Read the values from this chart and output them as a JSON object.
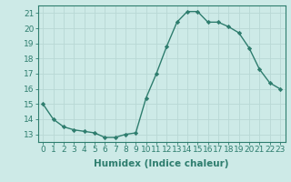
{
  "x": [
    0,
    1,
    2,
    3,
    4,
    5,
    6,
    7,
    8,
    9,
    10,
    11,
    12,
    13,
    14,
    15,
    16,
    17,
    18,
    19,
    20,
    21,
    22,
    23
  ],
  "y": [
    15,
    14,
    13.5,
    13.3,
    13.2,
    13.1,
    12.8,
    12.8,
    13.0,
    13.1,
    15.4,
    17.0,
    18.8,
    20.4,
    21.1,
    21.1,
    20.4,
    20.4,
    20.1,
    19.7,
    18.7,
    17.3,
    16.4,
    16.0
  ],
  "line_color": "#2e7d6e",
  "marker": "D",
  "marker_size": 2.2,
  "bg_color": "#cdeae7",
  "grid_color": "#b8d8d5",
  "xlabel": "Humidex (Indice chaleur)",
  "xlim": [
    -0.5,
    23.5
  ],
  "ylim": [
    12.5,
    21.5
  ],
  "yticks": [
    13,
    14,
    15,
    16,
    17,
    18,
    19,
    20,
    21
  ],
  "xticks": [
    0,
    1,
    2,
    3,
    4,
    5,
    6,
    7,
    8,
    9,
    10,
    11,
    12,
    13,
    14,
    15,
    16,
    17,
    18,
    19,
    20,
    21,
    22,
    23
  ],
  "tick_fontsize": 6.5,
  "xlabel_fontsize": 7.5,
  "line_width": 1.0
}
